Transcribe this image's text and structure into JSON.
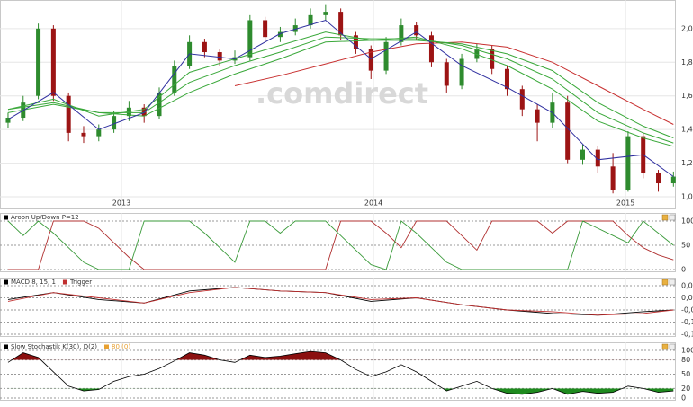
{
  "chart_data": [
    {
      "type": "candlestick",
      "watermark": ".comdirect",
      "x": [
        2012.55,
        2012.61,
        2012.67,
        2012.73,
        2012.79,
        2012.85,
        2012.91,
        2012.97,
        2013.03,
        2013.09,
        2013.15,
        2013.21,
        2013.27,
        2013.33,
        2013.39,
        2013.45,
        2013.51,
        2013.57,
        2013.63,
        2013.69,
        2013.75,
        2013.81,
        2013.87,
        2013.93,
        2013.99,
        2014.05,
        2014.11,
        2014.17,
        2014.23,
        2014.29,
        2014.35,
        2014.41,
        2014.47,
        2014.53,
        2014.59,
        2014.65,
        2014.71,
        2014.77,
        2014.83,
        2014.89,
        2014.95,
        2015.01,
        2015.07,
        2015.13,
        2015.19
      ],
      "open": [
        1.44,
        1.47,
        1.6,
        2.0,
        1.6,
        1.38,
        1.36,
        1.4,
        1.48,
        1.53,
        1.48,
        1.62,
        1.78,
        1.92,
        1.86,
        1.81,
        1.83,
        2.05,
        1.95,
        1.98,
        2.02,
        2.08,
        2.1,
        1.96,
        1.88,
        1.75,
        1.92,
        2.02,
        1.96,
        1.8,
        1.66,
        1.82,
        1.88,
        1.76,
        1.64,
        1.52,
        1.44,
        1.56,
        1.22,
        1.28,
        1.18,
        1.04,
        1.36,
        1.14,
        1.08
      ],
      "high": [
        1.5,
        1.6,
        2.03,
        2.02,
        1.62,
        1.42,
        1.43,
        1.51,
        1.57,
        1.55,
        1.65,
        1.81,
        1.96,
        1.94,
        1.88,
        1.87,
        2.08,
        2.07,
        2.01,
        2.06,
        2.12,
        2.14,
        2.12,
        1.98,
        1.9,
        1.95,
        2.06,
        2.04,
        1.98,
        1.82,
        1.85,
        1.91,
        1.9,
        1.78,
        1.66,
        1.55,
        1.62,
        1.6,
        1.31,
        1.3,
        1.26,
        1.39,
        1.38,
        1.16,
        1.15
      ],
      "low": [
        1.41,
        1.45,
        1.58,
        1.57,
        1.33,
        1.32,
        1.33,
        1.38,
        1.45,
        1.44,
        1.46,
        1.6,
        1.76,
        1.83,
        1.78,
        1.79,
        1.81,
        1.92,
        1.92,
        1.96,
        2.0,
        2.05,
        1.93,
        1.85,
        1.7,
        1.73,
        1.9,
        1.93,
        1.77,
        1.62,
        1.64,
        1.8,
        1.73,
        1.6,
        1.48,
        1.33,
        1.41,
        1.2,
        1.19,
        1.14,
        1.02,
        1.03,
        1.11,
        1.03,
        1.06
      ],
      "close": [
        1.47,
        1.56,
        2.0,
        1.6,
        1.38,
        1.36,
        1.4,
        1.48,
        1.53,
        1.48,
        1.62,
        1.78,
        1.92,
        1.86,
        1.81,
        1.83,
        2.05,
        1.95,
        1.98,
        2.02,
        2.08,
        2.1,
        1.96,
        1.88,
        1.75,
        1.92,
        2.02,
        1.96,
        1.8,
        1.66,
        1.82,
        1.88,
        1.76,
        1.64,
        1.52,
        1.44,
        1.56,
        1.22,
        1.28,
        1.18,
        1.04,
        1.36,
        1.14,
        1.08,
        1.12
      ],
      "up_color": "#2e8b2e",
      "down_color": "#9c1414",
      "lines": {
        "x": [
          2012.55,
          2012.73,
          2012.91,
          2013.09,
          2013.27,
          2013.45,
          2013.63,
          2013.81,
          2013.99,
          2014.17,
          2014.35,
          2014.53,
          2014.71,
          2014.89,
          2015.07,
          2015.19
        ],
        "series": [
          {
            "color": "#c83030",
            "values": [
              null,
              null,
              null,
              null,
              null,
              1.66,
              1.72,
              1.79,
              1.86,
              1.91,
              1.92,
              1.89,
              1.8,
              1.66,
              1.52,
              1.43
            ]
          },
          {
            "color": "#3aa83a",
            "values": [
              1.5,
              1.55,
              1.5,
              1.48,
              1.62,
              1.73,
              1.82,
              1.92,
              1.93,
              1.93,
              1.91,
              1.85,
              1.75,
              1.56,
              1.42,
              1.35
            ]
          },
          {
            "color": "#3aa83a",
            "values": [
              1.52,
              1.56,
              1.5,
              1.5,
              1.68,
              1.78,
              1.86,
              1.95,
              1.94,
              1.94,
              1.9,
              1.82,
              1.7,
              1.5,
              1.38,
              1.32
            ]
          },
          {
            "color": "#3aa83a",
            "values": [
              1.52,
              1.58,
              1.48,
              1.52,
              1.74,
              1.82,
              1.9,
              1.98,
              1.93,
              1.95,
              1.88,
              1.78,
              1.64,
              1.45,
              1.35,
              1.3
            ]
          },
          {
            "color": "#3030a0",
            "values": [
              1.46,
              1.62,
              1.4,
              1.5,
              1.85,
              1.82,
              1.97,
              2.05,
              1.82,
              1.98,
              1.78,
              1.65,
              1.5,
              1.22,
              1.25,
              1.12
            ]
          }
        ]
      },
      "xlim": [
        2012.518,
        2015.196
      ],
      "xticks": [
        2013,
        2014,
        2015
      ],
      "ylim": [
        1.0,
        2.17
      ],
      "yticks": [
        {
          "value": 1.0,
          "label": "1,0"
        },
        {
          "value": 1.2,
          "label": "1,2"
        },
        {
          "value": 1.4,
          "label": "1,4"
        },
        {
          "value": 1.6,
          "label": "1,6"
        },
        {
          "value": 1.8,
          "label": "1,8"
        },
        {
          "value": 2.0,
          "label": "2,0"
        }
      ],
      "grid": true
    },
    {
      "type": "line",
      "title": "Aroon Up/Down P=12",
      "legend_color": "#000000",
      "x": [
        2012.55,
        2012.61,
        2012.67,
        2012.73,
        2012.79,
        2012.85,
        2012.91,
        2012.97,
        2013.03,
        2013.09,
        2013.15,
        2013.21,
        2013.27,
        2013.33,
        2013.39,
        2013.45,
        2013.51,
        2013.57,
        2013.63,
        2013.69,
        2013.75,
        2013.81,
        2013.87,
        2013.93,
        2013.99,
        2014.05,
        2014.11,
        2014.17,
        2014.23,
        2014.29,
        2014.35,
        2014.41,
        2014.47,
        2014.53,
        2014.59,
        2014.65,
        2014.71,
        2014.77,
        2014.83,
        2014.89,
        2014.95,
        2015.01,
        2015.07,
        2015.13,
        2015.19
      ],
      "series": [
        {
          "color": "#b03030",
          "values": [
            0,
            0,
            0,
            100,
            100,
            100,
            85,
            55,
            25,
            0,
            0,
            0,
            0,
            0,
            0,
            0,
            0,
            0,
            0,
            0,
            0,
            0,
            100,
            100,
            100,
            75,
            45,
            100,
            100,
            100,
            70,
            40,
            100,
            100,
            100,
            100,
            75,
            100,
            100,
            100,
            100,
            70,
            45,
            30,
            20
          ]
        },
        {
          "color": "#3a9a3a",
          "values": [
            100,
            70,
            100,
            75,
            45,
            15,
            0,
            0,
            0,
            100,
            100,
            100,
            100,
            75,
            45,
            15,
            100,
            100,
            75,
            100,
            100,
            100,
            70,
            40,
            10,
            0,
            100,
            75,
            45,
            15,
            0,
            0,
            0,
            0,
            0,
            0,
            0,
            0,
            100,
            85,
            70,
            55,
            100,
            75,
            50
          ]
        }
      ],
      "ylim": [
        0,
        100
      ],
      "yticks": [
        0,
        50,
        100
      ],
      "grid": true
    },
    {
      "type": "line",
      "x": [
        2012.55,
        2012.73,
        2012.91,
        2013.09,
        2013.27,
        2013.45,
        2013.63,
        2013.81,
        2013.99,
        2014.17,
        2014.35,
        2014.53,
        2014.71,
        2014.89,
        2015.07,
        2015.19
      ],
      "series": [
        {
          "name": "MACD 8, 15, 1",
          "color": "#000000",
          "values": [
            0.01,
            0.05,
            0.01,
            -0.01,
            0.06,
            0.08,
            0.06,
            0.05,
            0.0,
            0.02,
            -0.02,
            -0.05,
            -0.07,
            -0.08,
            -0.06,
            -0.05
          ]
        },
        {
          "name": "Trigger",
          "color": "#c03030",
          "values": [
            0.0,
            0.05,
            0.02,
            -0.01,
            0.05,
            0.08,
            0.06,
            0.05,
            0.01,
            0.02,
            -0.02,
            -0.05,
            -0.06,
            -0.08,
            -0.07,
            -0.05
          ]
        }
      ],
      "ylim": [
        -0.19,
        0.09
      ],
      "yticks": [
        {
          "value": -0.19,
          "label": "-0,19"
        },
        {
          "value": -0.12,
          "label": "-0,12"
        },
        {
          "value": -0.05,
          "label": "-0,05"
        },
        {
          "value": 0.02,
          "label": "0,02"
        },
        {
          "value": 0.09,
          "label": "0,09"
        }
      ],
      "grid": true
    },
    {
      "type": "stochastic",
      "x": [
        2012.55,
        2012.61,
        2012.67,
        2012.73,
        2012.79,
        2012.85,
        2012.91,
        2012.97,
        2013.03,
        2013.09,
        2013.15,
        2013.21,
        2013.27,
        2013.33,
        2013.39,
        2013.45,
        2013.51,
        2013.57,
        2013.63,
        2013.69,
        2013.75,
        2013.81,
        2013.87,
        2013.93,
        2013.99,
        2014.05,
        2014.11,
        2014.17,
        2014.23,
        2014.29,
        2014.35,
        2014.41,
        2014.47,
        2014.53,
        2014.59,
        2014.65,
        2014.71,
        2014.77,
        2014.83,
        2014.89,
        2014.95,
        2015.01,
        2015.07,
        2015.13,
        2015.19
      ],
      "series": [
        {
          "name": "Slow Stochastik K(30), D(2)",
          "color": "#000000",
          "values": [
            75,
            95,
            85,
            55,
            25,
            15,
            18,
            35,
            45,
            50,
            62,
            78,
            95,
            90,
            80,
            75,
            90,
            85,
            88,
            93,
            98,
            95,
            80,
            60,
            45,
            55,
            70,
            55,
            35,
            15,
            25,
            35,
            20,
            10,
            8,
            12,
            20,
            8,
            14,
            10,
            12,
            25,
            20,
            12,
            15
          ]
        }
      ],
      "extra_legend": {
        "name": "80 (0)",
        "color": "#e8a030"
      },
      "fill_above": 80,
      "fill_above_color": "#8b1010",
      "fill_below": 20,
      "fill_below_color": "#1e8a1e",
      "ylim": [
        0,
        100
      ],
      "yticks": [
        0,
        20,
        50,
        80,
        100
      ],
      "grid": true
    }
  ]
}
